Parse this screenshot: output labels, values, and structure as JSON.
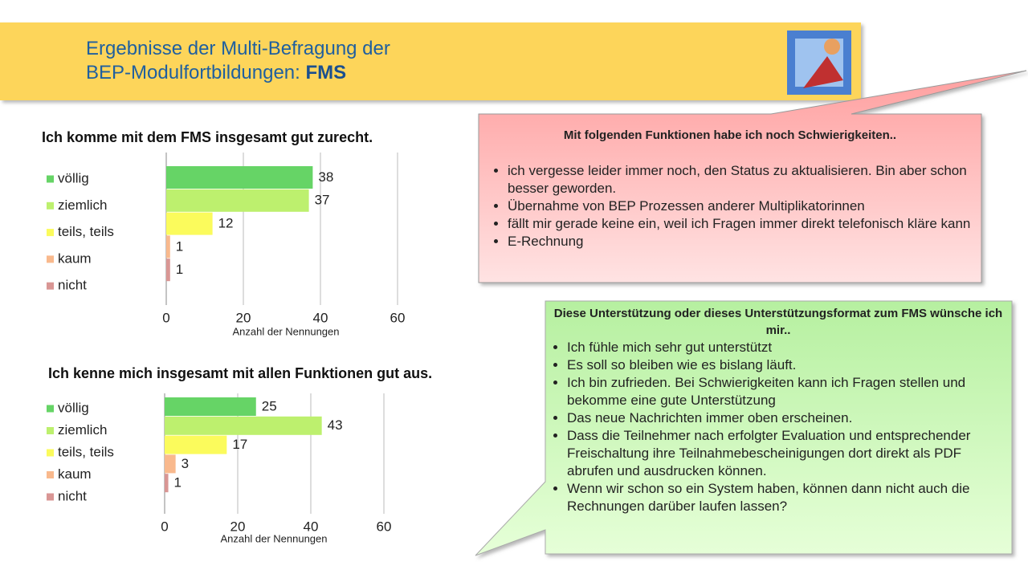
{
  "header": {
    "title_line1": "Ergebnisse der Multi-Befragung der",
    "title_line2": "BEP-Modulfortbildungen:",
    "title_bold": "FMS"
  },
  "chart_data": [
    {
      "type": "bar",
      "orientation": "horizontal",
      "title": "Ich komme mit dem FMS insgesamt gut zurecht.",
      "categories": [
        "völlig",
        "ziemlich",
        "teils, teils",
        "kaum",
        "nicht"
      ],
      "values": [
        38,
        37,
        12,
        1,
        1
      ],
      "colors": [
        "#66d466",
        "#bdf06e",
        "#fbfb5c",
        "#f9b98d",
        "#d99694"
      ],
      "xlim": [
        0,
        60
      ],
      "xticks": [
        0,
        20,
        40,
        60
      ],
      "xlabel": "Anzahl der Nennungen",
      "grid": true
    },
    {
      "type": "bar",
      "orientation": "horizontal",
      "title": "Ich kenne mich insgesamt mit allen Funktionen gut aus.",
      "categories": [
        "völlig",
        "ziemlich",
        "teils, teils",
        "kaum",
        "nicht"
      ],
      "values": [
        25,
        43,
        17,
        3,
        1
      ],
      "colors": [
        "#66d466",
        "#bdf06e",
        "#fbfb5c",
        "#f9b98d",
        "#d99694"
      ],
      "xlim": [
        0,
        60
      ],
      "xticks": [
        0,
        20,
        40,
        60
      ],
      "xlabel": "Anzahl der Nennungen",
      "grid": true
    }
  ],
  "callouts": [
    {
      "title": "Mit folgenden Funktionen habe ich noch Schwierigkeiten..",
      "items": [
        "ich vergesse leider immer noch, den Status zu aktualisieren. Bin aber schon besser geworden.",
        "Übernahme von BEP Prozessen anderer Multiplikatorinnen",
        "fällt mir gerade keine ein, weil ich Fragen immer direkt telefonisch kläre kann",
        "E-Rechnung"
      ]
    },
    {
      "title": "Diese Unterstützung oder dieses Unterstützungsformat zum FMS wünsche ich mir..",
      "items": [
        "Ich fühle mich sehr gut unterstützt",
        "Es soll so bleiben wie es bislang läuft.",
        "Ich bin zufrieden. Bei Schwierigkeiten kann ich Fragen stellen und bekomme eine gute Unterstützung",
        "Das neue Nachrichten immer oben erscheinen.",
        "Dass die Teilnehmer nach erfolgter Evaluation und entsprechender Freischaltung ihre Teilnahmebescheinigungen dort direkt als PDF abrufen und ausdrucken können.",
        "Wenn wir schon so ein System haben, können dann nicht auch die Rechnungen darüber laufen lassen?"
      ]
    }
  ]
}
